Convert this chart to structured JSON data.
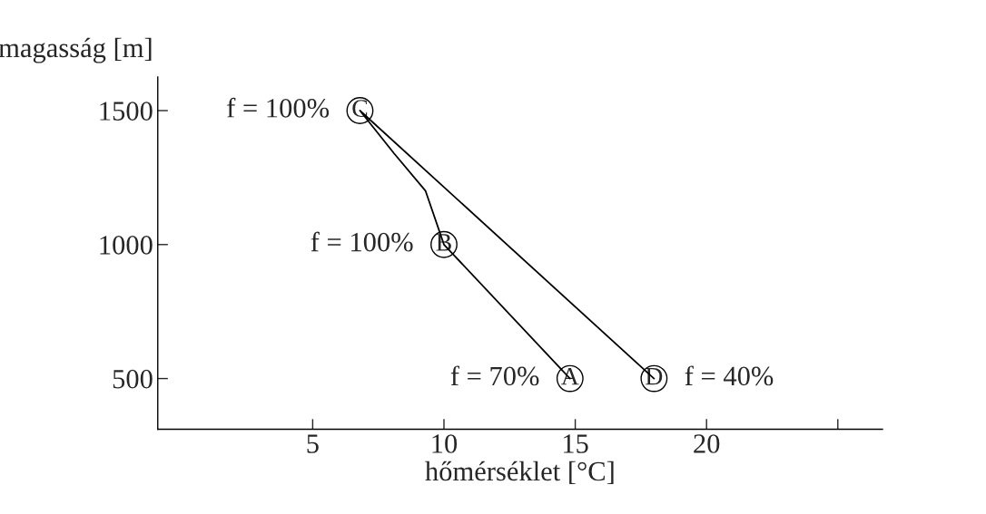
{
  "chart_data": {
    "type": "line",
    "xlabel": "hőmérséklet [°C]",
    "ylabel": "magasság [m]",
    "series": [
      {
        "color": "#000000",
        "marker": "none",
        "x": [
          14.8,
          10,
          9.3,
          8.1,
          6.8,
          18.0
        ],
        "values": [
          500,
          1000,
          1200,
          1340,
          1500,
          500
        ]
      },
      {
        "type": "scatter",
        "color": "#000000",
        "marker": "circle",
        "x": [
          14.8,
          10,
          6.8,
          18.0
        ],
        "values": [
          500,
          1000,
          1500,
          500
        ]
      }
    ],
    "xlim": [
      -0.9,
      26.7
    ],
    "ylim": [
      311,
      1625
    ],
    "xticks": [
      5,
      10,
      15,
      20,
      {
        "value": 25,
        "label": null
      }
    ],
    "yticks": [
      500,
      1000,
      1500
    ],
    "grid": false,
    "legend": false,
    "annotations": [
      {
        "text": "A",
        "x": 14.8,
        "y": 500
      },
      {
        "text": "B",
        "x": 10,
        "y": 1000
      },
      {
        "text": "C",
        "x": 6.8,
        "y": 1500
      },
      {
        "text": "D",
        "x": 18.0,
        "y": 500
      },
      {
        "text": "f = 70%",
        "x": 14.8,
        "y": 500
      },
      {
        "text": "f = 100%",
        "x": 10,
        "y": 1000
      },
      {
        "text": "f = 100%",
        "x": 6.8,
        "y": 1500
      },
      {
        "text": "f = 40%",
        "x": 18.0,
        "y": 500
      }
    ]
  }
}
